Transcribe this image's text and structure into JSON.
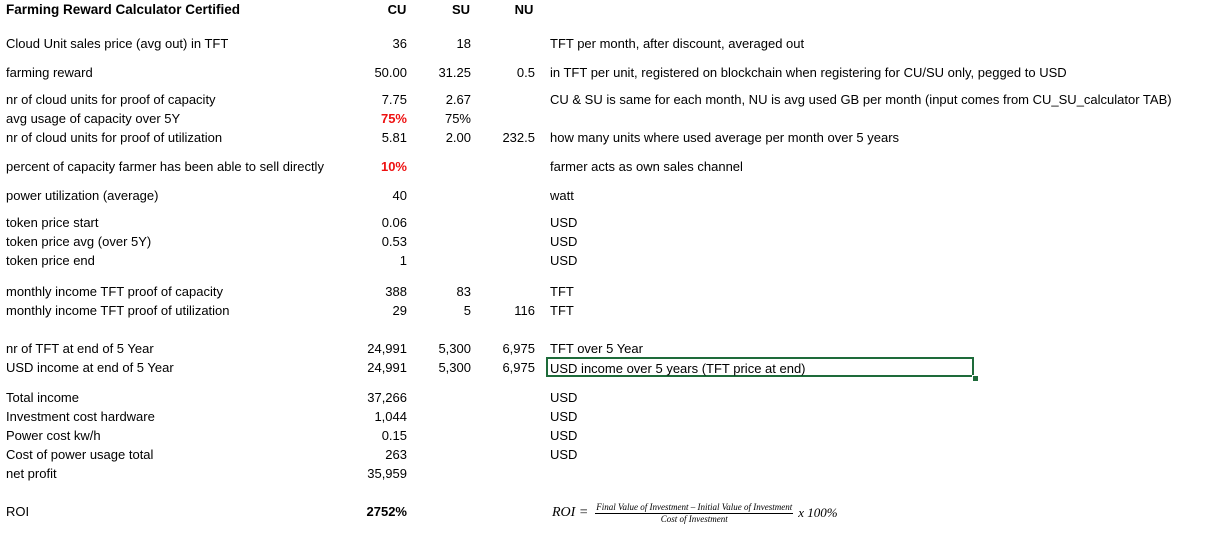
{
  "title": "Farming Reward Calculator Certified",
  "headers": {
    "cu": "CU",
    "su": "SU",
    "nu": "NU"
  },
  "rows": {
    "sales_price": {
      "label": "Cloud Unit sales price (avg out) in TFT",
      "cu": "36",
      "su": "18",
      "nu": "",
      "note": "TFT per month, after discount, averaged out"
    },
    "farming_reward": {
      "label": "farming reward",
      "cu": "50.00",
      "su": "31.25",
      "nu": "0.5",
      "note": "in TFT per unit, registered on blockchain when registering for CU/SU only, pegged to USD"
    },
    "units_capacity": {
      "label": "nr of cloud units for proof of capacity",
      "cu": "7.75",
      "su": "2.67",
      "nu": "",
      "note": "CU & SU is same for each month, NU is avg used GB per month (input comes from CU_SU_calculator TAB)"
    },
    "avg_usage": {
      "label": "avg usage of capacity over 5Y",
      "cu": "75%",
      "su": "75%",
      "nu": "",
      "note": ""
    },
    "units_utilization": {
      "label": "nr of cloud units for proof of utilization",
      "cu": "5.81",
      "su": "2.00",
      "nu": "232.5",
      "note": "how many units where used average per month over 5 years"
    },
    "percent_sold": {
      "label": "percent of capacity farmer has been able to sell directly",
      "cu": "10%",
      "su": "",
      "nu": "",
      "note": "farmer acts as own sales channel"
    },
    "power_util": {
      "label": "power utilization (average)",
      "cu": "40",
      "su": "",
      "nu": "",
      "note": "watt"
    },
    "token_start": {
      "label": "token price start",
      "cu": "0.06",
      "note": "USD"
    },
    "token_avg": {
      "label": "token price avg (over 5Y)",
      "cu": "0.53",
      "note": "USD"
    },
    "token_end": {
      "label": "token price end",
      "cu": "1",
      "note": "USD"
    },
    "income_capacity": {
      "label": "monthly income TFT proof of capacity",
      "cu": "388",
      "su": "83",
      "nu": "",
      "note": "TFT"
    },
    "income_utilization": {
      "label": "monthly income TFT proof of utilization",
      "cu": "29",
      "su": "5",
      "nu": "116",
      "note": "TFT"
    },
    "tft_end": {
      "label": "nr of TFT at end of 5 Year",
      "cu": "24,991",
      "su": "5,300",
      "nu": "6,975",
      "note": "TFT over 5 Year"
    },
    "usd_end": {
      "label": "USD income at end of 5 Year",
      "cu": "24,991",
      "su": "5,300",
      "nu": "6,975",
      "note": "USD income over 5 years (TFT price at end)"
    },
    "total_income": {
      "label": "Total income",
      "cu": "37,266",
      "note": "USD"
    },
    "investment": {
      "label": "Investment cost hardware",
      "cu": "1,044",
      "note": "USD"
    },
    "power_cost": {
      "label": "Power cost kw/h",
      "cu": "0.15",
      "note": "USD"
    },
    "power_total": {
      "label": "Cost of power usage total",
      "cu": "263",
      "note": "USD"
    },
    "net_profit": {
      "label": "net profit",
      "cu": "35,959",
      "note": ""
    },
    "roi": {
      "label": "ROI",
      "cu": "2752%"
    }
  },
  "formula": {
    "lhs": "ROI =",
    "numerator": "Final Value of Investment – Initial Value of Investment",
    "denominator": "Cost of Investment",
    "tail": "x 100%"
  },
  "colors": {
    "highlight_red": "#ee1111",
    "selection_green": "#1e6b3a"
  }
}
